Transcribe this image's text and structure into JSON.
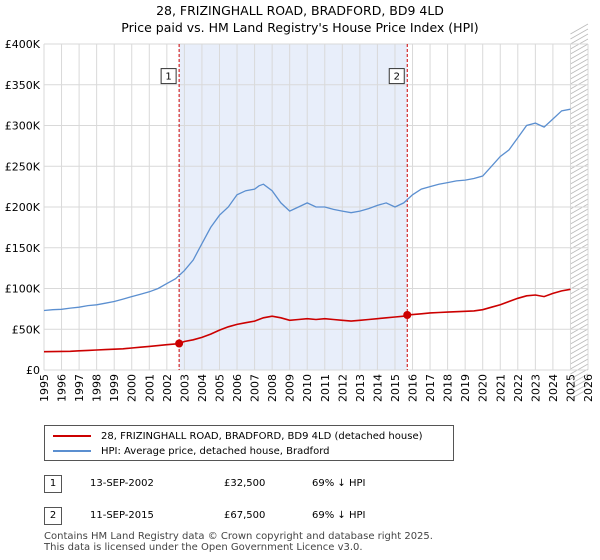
{
  "title_line1": "28, FRIZINGHALL ROAD, BRADFORD, BD9 4LD",
  "title_line2": "Price paid vs. HM Land Registry's House Price Index (HPI)",
  "colors": {
    "property": "#cc0000",
    "hpi": "#5b8fd0",
    "shade": "#e8eefa",
    "grid": "#d9d9d9"
  },
  "legend": {
    "property_label": "28, FRIZINGHALL ROAD, BRADFORD, BD9 4LD (detached house)",
    "hpi_label": "HPI: Average price, detached house, Bradford"
  },
  "annotations": [
    {
      "num": "1",
      "date": "13-SEP-2002",
      "price": "£32,500",
      "hpi": "69% ↓ HPI"
    },
    {
      "num": "2",
      "date": "11-SEP-2015",
      "price": "£67,500",
      "hpi": "69% ↓ HPI"
    }
  ],
  "footer_line1": "Contains HM Land Registry data © Crown copyright and database right 2025.",
  "footer_line2": "This data is licensed under the Open Government Licence v3.0.",
  "chart_data": {
    "type": "line",
    "xlim": [
      1995,
      2026
    ],
    "ylim": [
      0,
      400000
    ],
    "y_ticks": [
      0,
      50000,
      100000,
      150000,
      200000,
      250000,
      300000,
      350000,
      400000
    ],
    "y_tick_labels": [
      "£0",
      "£50K",
      "£100K",
      "£150K",
      "£200K",
      "£250K",
      "£300K",
      "£350K",
      "£400K"
    ],
    "x_ticks": [
      1995,
      1996,
      1997,
      1998,
      1999,
      2000,
      2001,
      2002,
      2003,
      2004,
      2005,
      2006,
      2007,
      2008,
      2009,
      2010,
      2011,
      2012,
      2013,
      2014,
      2015,
      2016,
      2017,
      2018,
      2019,
      2020,
      2021,
      2022,
      2023,
      2024,
      2025,
      2026
    ],
    "grid": true,
    "shaded_ranges": [
      [
        2002.7,
        2015.7
      ]
    ],
    "hatched_from": 2025.0,
    "sales": [
      {
        "num": "1",
        "x": 2002.7,
        "y": 32500
      },
      {
        "num": "2",
        "x": 2015.7,
        "y": 67500
      }
    ],
    "series": [
      {
        "name": "HPI: Average price, detached house, Bradford",
        "x": [
          1995,
          1995.5,
          1996,
          1996.5,
          1997,
          1997.5,
          1998,
          1998.5,
          1999,
          1999.5,
          2000,
          2000.5,
          2001,
          2001.5,
          2002,
          2002.5,
          2003,
          2003.5,
          2004,
          2004.5,
          2005,
          2005.5,
          2006,
          2006.5,
          2007,
          2007.25,
          2007.5,
          2008,
          2008.5,
          2009,
          2009.5,
          2010,
          2010.5,
          2011,
          2011.5,
          2012,
          2012.5,
          2013,
          2013.5,
          2014,
          2014.5,
          2015,
          2015.5,
          2016,
          2016.5,
          2017,
          2017.5,
          2018,
          2018.5,
          2019,
          2019.5,
          2020,
          2020.5,
          2021,
          2021.5,
          2022,
          2022.5,
          2023,
          2023.5,
          2024,
          2024.5,
          2025
        ],
        "y": [
          73000,
          74000,
          74500,
          76000,
          77000,
          79000,
          80000,
          82000,
          84000,
          87000,
          90000,
          93000,
          96000,
          100000,
          106000,
          112000,
          122000,
          135000,
          155000,
          175000,
          190000,
          200000,
          215000,
          220000,
          222000,
          226000,
          228000,
          220000,
          205000,
          195000,
          200000,
          205000,
          200000,
          200000,
          197000,
          195000,
          193000,
          195000,
          198000,
          202000,
          205000,
          200000,
          205000,
          215000,
          222000,
          225000,
          228000,
          230000,
          232000,
          233000,
          235000,
          238000,
          250000,
          262000,
          270000,
          285000,
          300000,
          303000,
          298000,
          308000,
          318000,
          320000
        ]
      },
      {
        "name": "28, FRIZINGHALL ROAD, BRADFORD, BD9 4LD (detached house)",
        "x": [
          1995,
          1995.5,
          1996,
          1996.5,
          1997,
          1997.5,
          1998,
          1998.5,
          1999,
          1999.5,
          2000,
          2000.5,
          2001,
          2001.5,
          2002,
          2002.5,
          2002.7,
          2003,
          2003.5,
          2004,
          2004.5,
          2005,
          2005.5,
          2006,
          2006.5,
          2007,
          2007.5,
          2008,
          2008.5,
          2009,
          2009.5,
          2010,
          2010.5,
          2011,
          2011.5,
          2012,
          2012.5,
          2013,
          2013.5,
          2014,
          2014.5,
          2015,
          2015.5,
          2015.7,
          2016,
          2016.5,
          2017,
          2017.5,
          2018,
          2018.5,
          2019,
          2019.5,
          2020,
          2020.5,
          2021,
          2021.5,
          2022,
          2022.5,
          2023,
          2023.5,
          2024,
          2024.5,
          2025
        ],
        "y": [
          22500,
          22600,
          22800,
          23000,
          23500,
          24000,
          24500,
          25000,
          25500,
          26000,
          27000,
          28000,
          29000,
          30000,
          31000,
          32000,
          32500,
          35000,
          37000,
          40000,
          44000,
          49000,
          53000,
          56000,
          58000,
          60000,
          64000,
          66000,
          64000,
          61000,
          62000,
          63000,
          62000,
          63000,
          62000,
          61000,
          60000,
          61000,
          62000,
          63000,
          64000,
          65000,
          66000,
          67500,
          68000,
          69000,
          70000,
          70500,
          71000,
          71500,
          72000,
          72500,
          74000,
          77000,
          80000,
          84000,
          88000,
          91000,
          92000,
          90000,
          94000,
          97000,
          99000
        ]
      }
    ]
  }
}
